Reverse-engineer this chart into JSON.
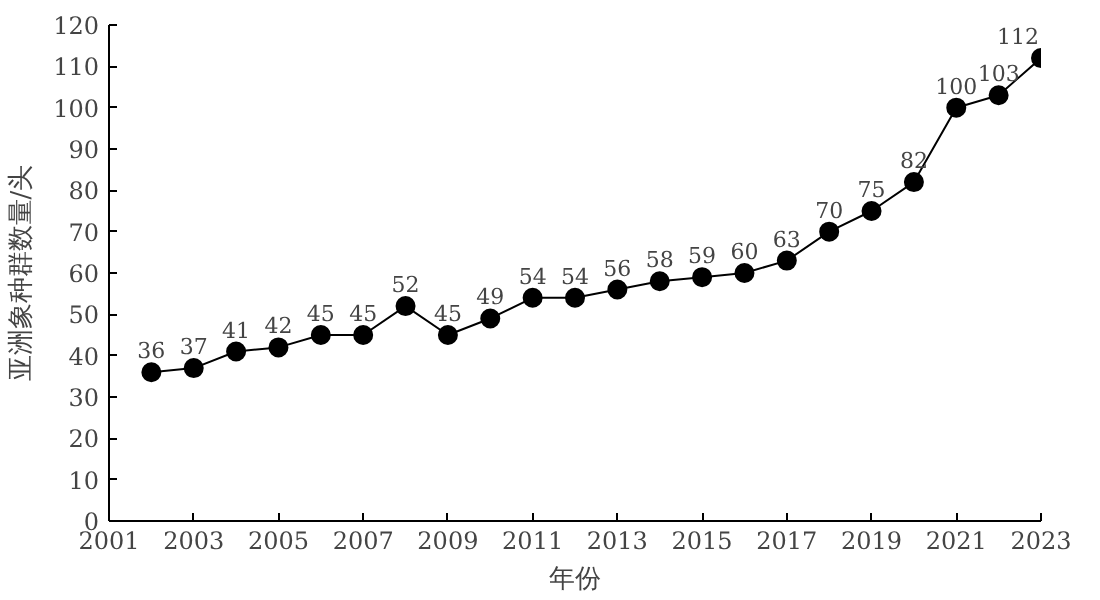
{
  "chart_data": {
    "type": "line",
    "xlabel": "年份",
    "ylabel": "亚洲象种群数量/头",
    "x": [
      2002,
      2003,
      2004,
      2005,
      2006,
      2007,
      2008,
      2009,
      2010,
      2011,
      2012,
      2013,
      2014,
      2015,
      2016,
      2017,
      2018,
      2019,
      2020,
      2021,
      2022,
      2023
    ],
    "series": [
      {
        "color": "#000000",
        "values": [
          36,
          37,
          41,
          42,
          45,
          45,
          52,
          45,
          49,
          54,
          54,
          56,
          58,
          59,
          60,
          63,
          70,
          75,
          82,
          100,
          103,
          112
        ]
      }
    ],
    "xlim": [
      2001,
      2023
    ],
    "xticks": [
      2001,
      2003,
      2005,
      2007,
      2009,
      2011,
      2013,
      2015,
      2017,
      2019,
      2021,
      2023
    ],
    "ylim": [
      0,
      120
    ],
    "yticks": [
      0,
      10,
      20,
      30,
      40,
      50,
      60,
      70,
      80,
      90,
      100,
      110,
      120
    ],
    "data_labels": true,
    "marker": "circle",
    "line_style": "solid",
    "grid": false
  }
}
